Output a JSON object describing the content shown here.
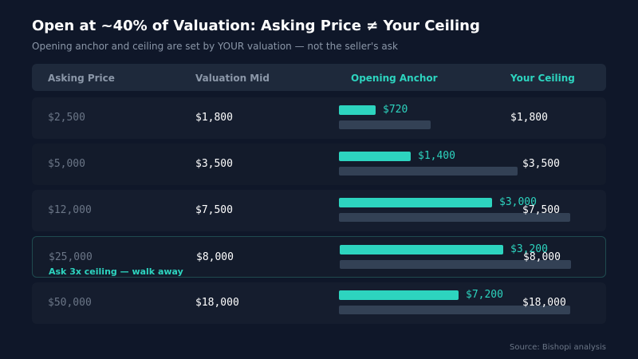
{
  "title": "Open at ~40% of Valuation: Asking Price ≠ Your Ceiling",
  "subtitle": "Opening anchor and ceiling are set by YOUR valuation — not the seller's ask",
  "source": "Source: Bishopi analysis",
  "colors": {
    "background": "#0f1729",
    "header_bg": "#1e293b",
    "accent": "#2dd4bf",
    "ceiling_bar": "#334155",
    "muted_text": "#6b7687"
  },
  "chart_data": {
    "type": "table",
    "columns": [
      "Asking Price",
      "Valuation Mid",
      "Opening Anchor",
      "Your Ceiling"
    ],
    "bar_scale_max": 18000,
    "rows": [
      {
        "asking": 2500,
        "asking_label": "$2,500",
        "valuation": 1800,
        "valuation_label": "$1,800",
        "anchor": 720,
        "anchor_label": "$720",
        "ceiling": 1800,
        "ceiling_label": "$1,800",
        "note": ""
      },
      {
        "asking": 5000,
        "asking_label": "$5,000",
        "valuation": 3500,
        "valuation_label": "$3,500",
        "anchor": 1400,
        "anchor_label": "$1,400",
        "ceiling": 3500,
        "ceiling_label": "$3,500",
        "note": ""
      },
      {
        "asking": 12000,
        "asking_label": "$12,000",
        "valuation": 7500,
        "valuation_label": "$7,500",
        "anchor": 3000,
        "anchor_label": "$3,000",
        "ceiling": 7500,
        "ceiling_label": "$7,500",
        "note": ""
      },
      {
        "asking": 25000,
        "asking_label": "$25,000",
        "valuation": 8000,
        "valuation_label": "$8,000",
        "anchor": 3200,
        "anchor_label": "$3,200",
        "ceiling": 8000,
        "ceiling_label": "$8,000",
        "note": "Ask 3x ceiling — walk away"
      },
      {
        "asking": 50000,
        "asking_label": "$50,000",
        "valuation": 18000,
        "valuation_label": "$18,000",
        "anchor": 7200,
        "anchor_label": "$7,200",
        "ceiling": 18000,
        "ceiling_label": "$18,000",
        "note": ""
      }
    ],
    "highlighted_row": 3
  }
}
